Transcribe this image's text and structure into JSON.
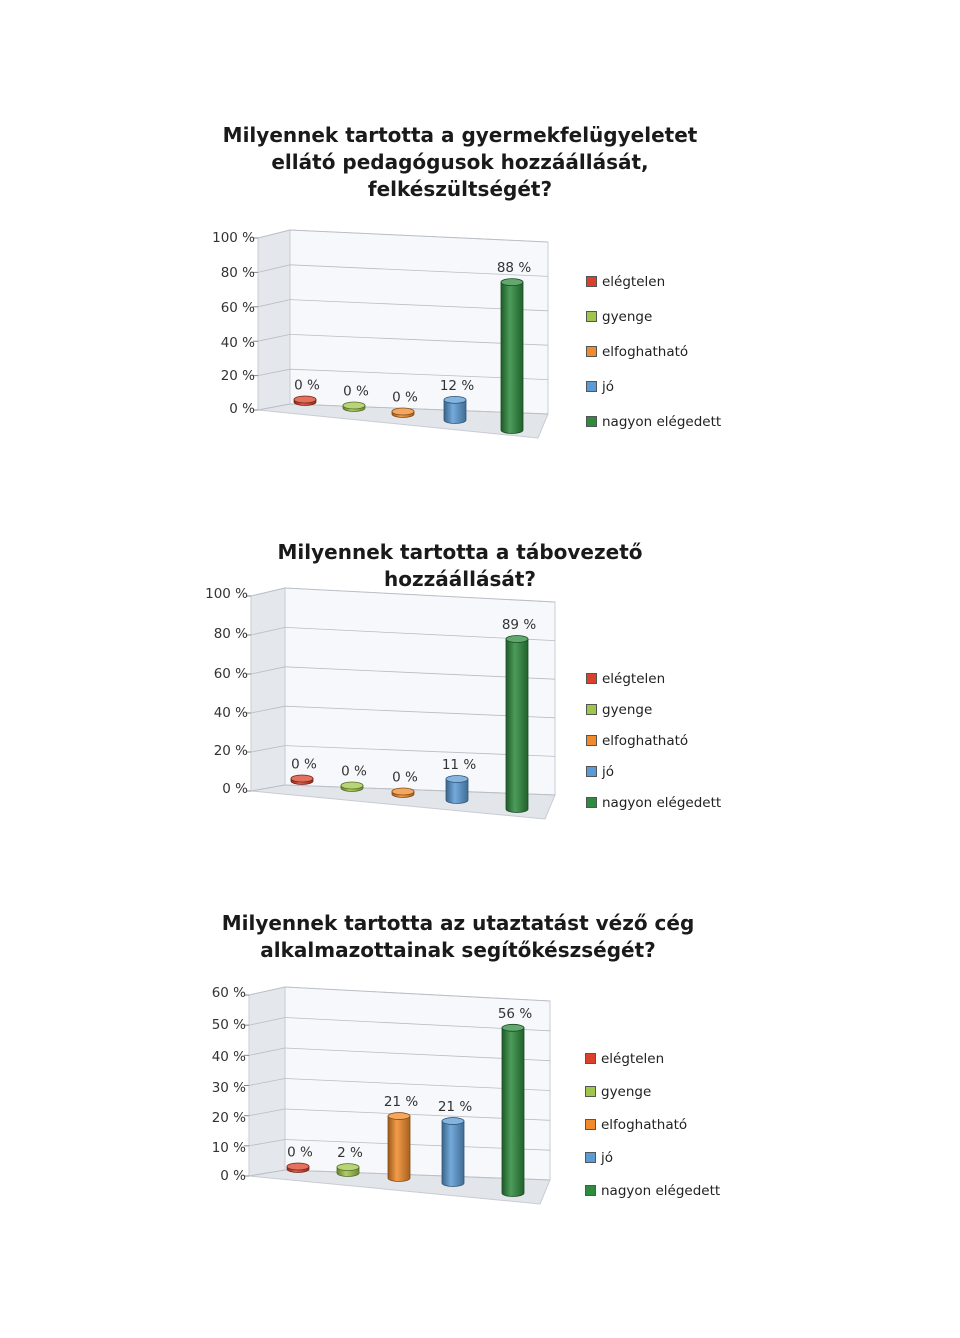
{
  "chart_data": [
    {
      "type": "bar",
      "title": "Milyennek tartotta a gyermekfelügyeletet\nellátó pedagógusok hozzáállását,\nfelkészültségét?",
      "categories": [
        "elégtelen",
        "gyenge",
        "elfoghatható",
        "jó",
        "nagyon elégedett"
      ],
      "values": [
        0,
        0,
        0,
        12,
        88
      ],
      "value_labels": [
        "0 %",
        "0 %",
        "0 %",
        "12 %",
        "88 %"
      ],
      "ylim": [
        0,
        100
      ],
      "yticks": [
        "100 %",
        "80 %",
        "60 %",
        "40 %",
        "20 %",
        "0 %"
      ],
      "legend": [
        "elégtelen",
        "gyenge",
        "elfoghatható",
        "jó",
        "nagyon elégedett"
      ],
      "legend_position": "right",
      "grid": true
    },
    {
      "type": "bar",
      "title": "Milyennek tartotta a tábovezető hozzáállását?",
      "categories": [
        "elégtelen",
        "gyenge",
        "elfoghatható",
        "jó",
        "nagyon elégedett"
      ],
      "values": [
        0,
        0,
        0,
        11,
        89
      ],
      "value_labels": [
        "0 %",
        "0 %",
        "0 %",
        "11 %",
        "89 %"
      ],
      "ylim": [
        0,
        100
      ],
      "yticks": [
        "100 %",
        "80 %",
        "60 %",
        "40 %",
        "20 %",
        "0 %"
      ],
      "legend": [
        "elégtelen",
        "gyenge",
        "elfoghatható",
        "jó",
        "nagyon elégedett"
      ],
      "legend_position": "right",
      "grid": true
    },
    {
      "type": "bar",
      "title": "Milyennek tartotta az utaztatást véző cég\nalkalmazottainak segítőkészségét?",
      "categories": [
        "elégtelen",
        "gyenge",
        "elfoghatható",
        "jó",
        "nagyon elégedett"
      ],
      "values": [
        0,
        2,
        21,
        21,
        56
      ],
      "value_labels": [
        "0 %",
        "2 %",
        "21 %",
        "21 %",
        "56 %"
      ],
      "ylim": [
        0,
        60
      ],
      "yticks": [
        "60 %",
        "50 %",
        "40 %",
        "30 %",
        "20 %",
        "10 %",
        "0 %"
      ],
      "legend": [
        "elégtelen",
        "gyenge",
        "elfoghatható",
        "jó",
        "nagyon elégedett"
      ],
      "legend_position": "right",
      "grid": true
    }
  ],
  "colors": [
    "#d9412a",
    "#9fc54a",
    "#f08a2a",
    "#5b9bd5",
    "#2e8b3e"
  ]
}
